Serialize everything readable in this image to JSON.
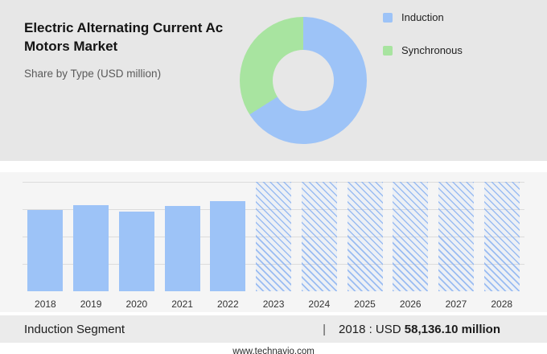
{
  "header": {
    "title": "Electric Alternating Current Ac Motors Market",
    "subtitle": "Share by Type (USD million)"
  },
  "legend": [
    {
      "label": "Induction",
      "color": "#9dc3f7"
    },
    {
      "label": "Synchronous",
      "color": "#a8e4a0"
    }
  ],
  "chart_data": [
    {
      "type": "pie",
      "title": "Share by Type (USD million)",
      "labels": [
        "Induction",
        "Synchronous"
      ],
      "values": [
        66,
        34
      ],
      "colors": [
        "#9dc3f7",
        "#a8e4a0"
      ],
      "donut": true,
      "legend_position": "right"
    },
    {
      "type": "bar",
      "categories": [
        "2018",
        "2019",
        "2020",
        "2021",
        "2022",
        "2023",
        "2024",
        "2025",
        "2026",
        "2027",
        "2028"
      ],
      "values": [
        74,
        79,
        73,
        78,
        82,
        100,
        100,
        100,
        100,
        100,
        100
      ],
      "value_unit": "relative bar height % (absolute values not labeled on axis)",
      "solid_count": 5,
      "historical_categories": [
        "2018",
        "2019",
        "2020",
        "2021",
        "2022"
      ],
      "forecast_categories": [
        "2023",
        "2024",
        "2025",
        "2026",
        "2027",
        "2028"
      ],
      "known_values": {
        "2018": "USD 58,136.10 million"
      },
      "grid": true,
      "bar_color": "#9dc3f7",
      "forecast_style": "diagonal-hatch"
    }
  ],
  "caption": {
    "segment": "Induction Segment",
    "separator": "|",
    "year_prefix": "2018 : USD ",
    "value_bold": "58,136.10 million"
  },
  "footer": {
    "url": "www.technavio.com"
  }
}
